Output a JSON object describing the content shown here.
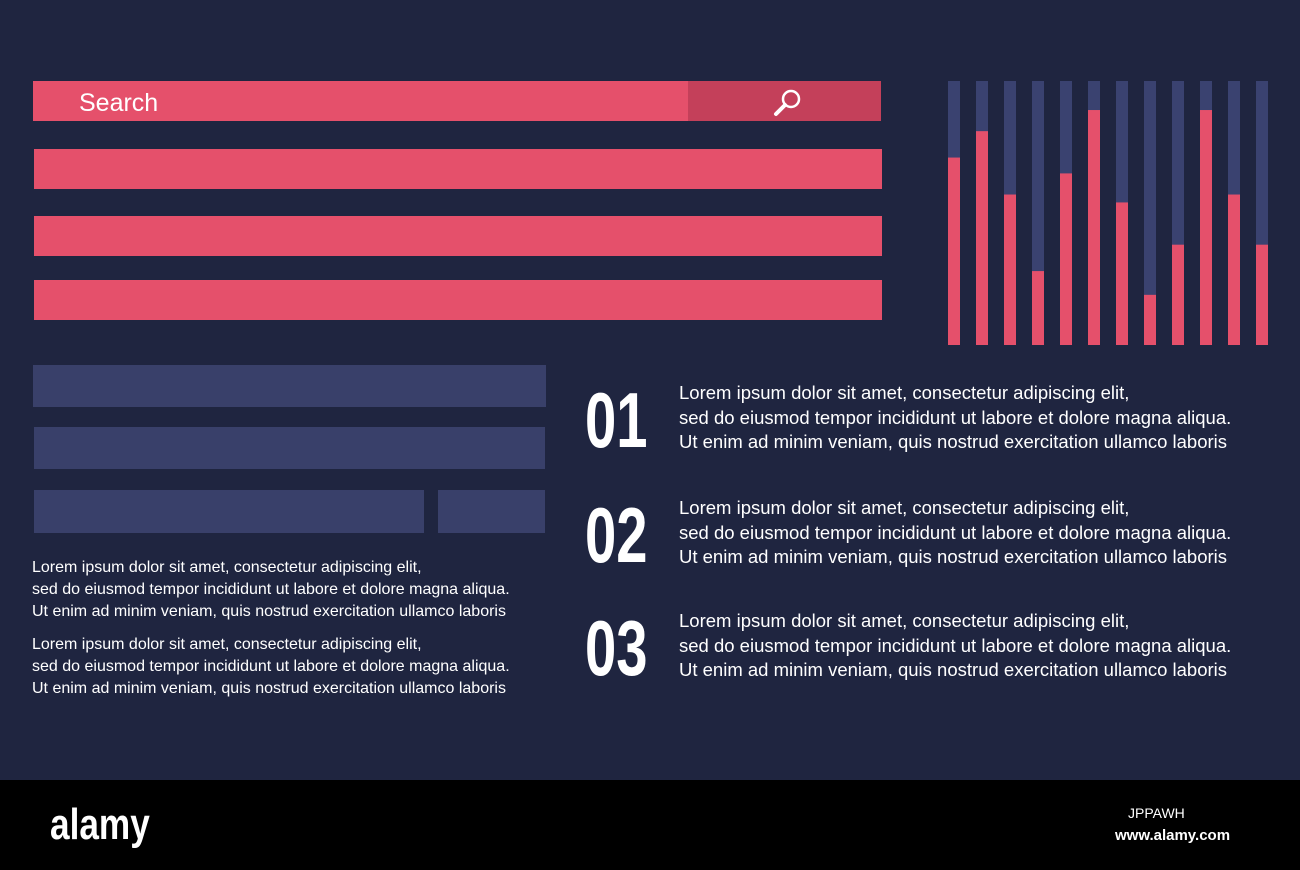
{
  "search": {
    "placeholder": "Search"
  },
  "chart_data": {
    "type": "bar",
    "values": [
      71,
      81,
      57,
      28,
      65,
      89,
      54,
      19,
      38,
      89,
      57,
      38
    ],
    "ylim": [
      0,
      100
    ],
    "color": "#e5506b",
    "track_color": "#3a4270"
  },
  "paragraphs": [
    [
      "Lorem ipsum dolor sit amet, consectetur adipiscing elit,",
      "sed do eiusmod tempor incididunt ut labore et dolore magna aliqua.",
      "Ut enim ad minim veniam, quis nostrud exercitation ullamco laboris"
    ],
    [
      "Lorem ipsum dolor sit amet, consectetur adipiscing elit,",
      "sed do eiusmod tempor incididunt ut labore et dolore magna aliqua.",
      "Ut enim ad minim veniam, quis nostrud exercitation ullamco laboris"
    ]
  ],
  "items": [
    {
      "number": "01",
      "lines": [
        "Lorem ipsum dolor sit amet, consectetur adipiscing elit,",
        "sed do eiusmod tempor incididunt ut labore et dolore magna aliqua.",
        "Ut enim ad minim veniam, quis nostrud exercitation ullamco laboris"
      ]
    },
    {
      "number": "02",
      "lines": [
        "Lorem ipsum dolor sit amet, consectetur adipiscing elit,",
        "sed do eiusmod tempor incididunt ut labore et dolore magna aliqua.",
        "Ut enim ad minim veniam, quis nostrud exercitation ullamco laboris"
      ]
    },
    {
      "number": "03",
      "lines": [
        "Lorem ipsum dolor sit amet, consectetur adipiscing elit,",
        "sed do eiusmod tempor incididunt ut labore et dolore magna aliqua.",
        "Ut enim ad minim veniam, quis nostrud exercitation ullamco laboris"
      ]
    }
  ],
  "footer": {
    "logo": "alamy",
    "image_id": "JPPAWH",
    "url": "www.alamy.com"
  }
}
